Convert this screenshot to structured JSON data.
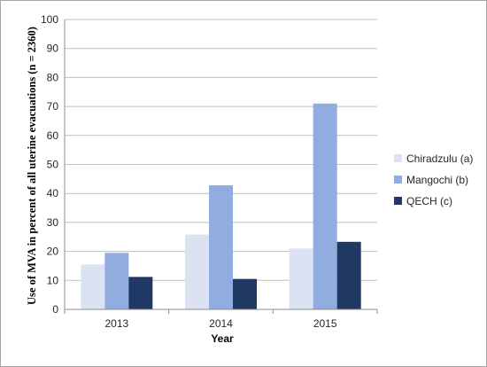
{
  "chart_data": {
    "type": "bar",
    "title": "",
    "xlabel": "Year",
    "ylabel": "Use of MVA in percent of all uterine evacuations (n = 2360)",
    "categories": [
      "2013",
      "2014",
      "2015"
    ],
    "ylim": [
      0,
      100
    ],
    "yticks": [
      0,
      10,
      20,
      30,
      40,
      50,
      60,
      70,
      80,
      90,
      100
    ],
    "grid": true,
    "legend_position": "right",
    "series": [
      {
        "name": "Chiradzulu (a)",
        "color": "#dbe3f3",
        "values": [
          15.5,
          25.8,
          21.0
        ]
      },
      {
        "name": "Mangochi (b)",
        "color": "#91acde",
        "values": [
          19.5,
          42.8,
          71.0
        ]
      },
      {
        "name": "QECH (c)",
        "color": "#1f3864",
        "values": [
          11.2,
          10.5,
          23.3
        ]
      }
    ]
  }
}
